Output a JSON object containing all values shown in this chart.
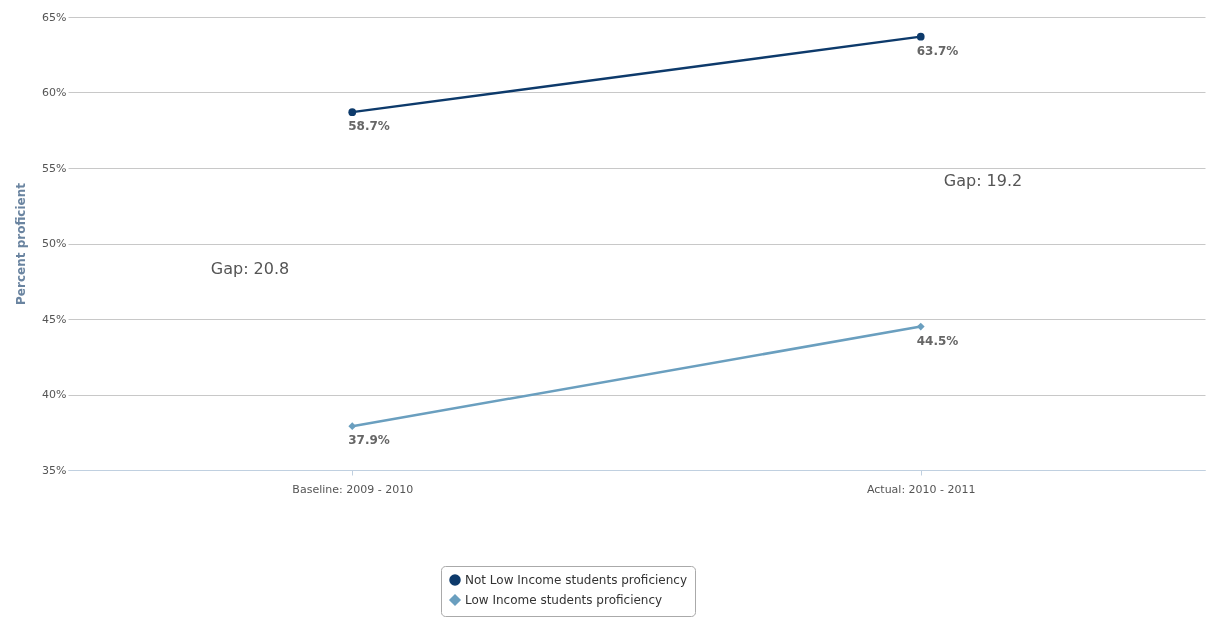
{
  "chart_data": {
    "type": "line",
    "ylabel": "Percent proficient",
    "categories": [
      "Baseline: 2009 - 2010",
      "Actual: 2010 - 2011"
    ],
    "series": [
      {
        "name": "Not Low Income students proficiency",
        "color": "#0d3a6b",
        "marker": "circle",
        "values": [
          58.7,
          63.7
        ],
        "value_labels": [
          "58.7%",
          "63.7%"
        ]
      },
      {
        "name": "Low Income students proficiency",
        "color": "#6a9fbf",
        "marker": "diamond",
        "values": [
          37.9,
          44.5
        ],
        "value_labels": [
          "37.9%",
          "44.5%"
        ]
      }
    ],
    "ylim": [
      35,
      65
    ],
    "yticks": [
      {
        "value": 35,
        "label": "35%"
      },
      {
        "value": 40,
        "label": "40%"
      },
      {
        "value": 45,
        "label": "45%"
      },
      {
        "value": 50,
        "label": "50%"
      },
      {
        "value": 55,
        "label": "55%"
      },
      {
        "value": 60,
        "label": "60%"
      },
      {
        "value": 65,
        "label": "65%"
      }
    ],
    "annotations": [
      "Gap: 20.8",
      "Gap: 19.2"
    ],
    "grid": "y",
    "legend": "bottom"
  }
}
